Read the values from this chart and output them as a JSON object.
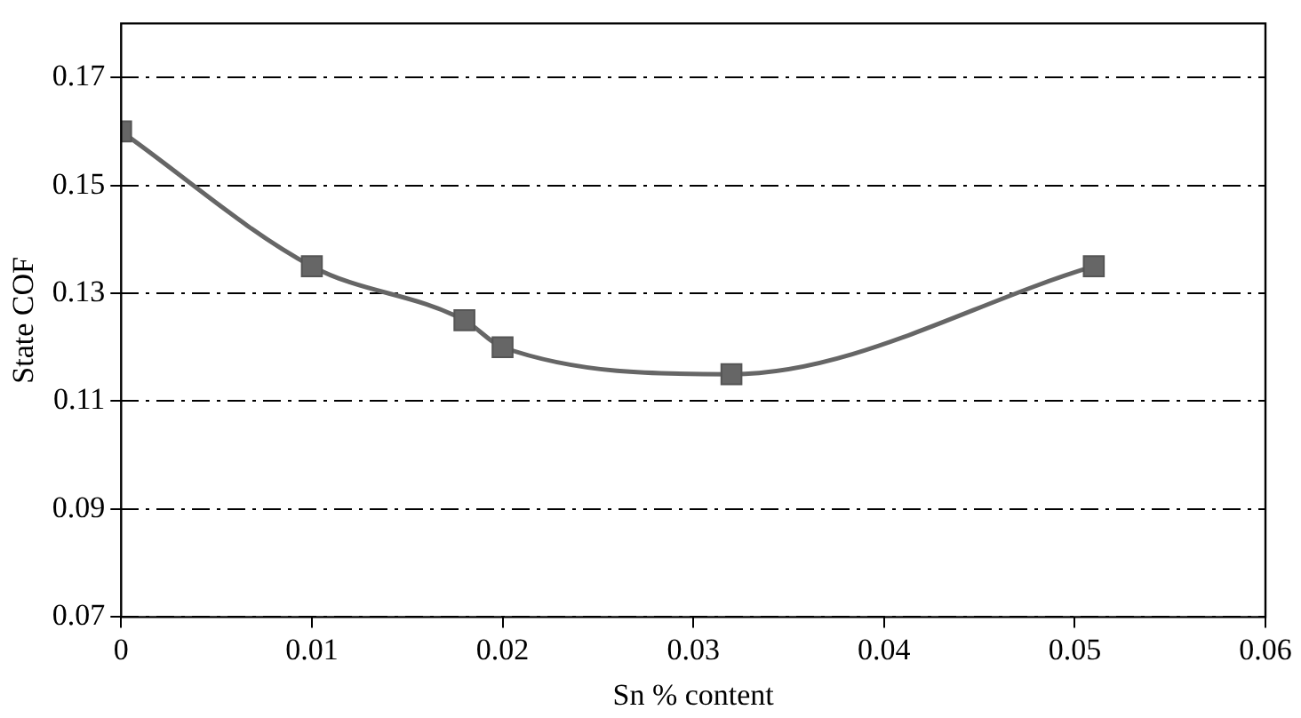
{
  "chart_data": {
    "type": "line",
    "xlabel": "Sn % content",
    "ylabel": "State COF",
    "x": [
      0,
      0.01,
      0.018,
      0.02,
      0.032,
      0.051
    ],
    "series": [
      {
        "color": "#666666",
        "values": [
          0.16,
          0.135,
          0.125,
          0.12,
          0.115,
          0.135
        ]
      }
    ],
    "xlim": [
      0,
      0.06
    ],
    "xticks": [
      0,
      0.01,
      0.02,
      0.03,
      0.04,
      0.05,
      0.06
    ],
    "ylim": [
      0.07,
      0.18
    ],
    "yticks": [
      0.07,
      0.09,
      0.11,
      0.13,
      0.15,
      0.17
    ],
    "grid": "y",
    "legend": false,
    "marker": "square",
    "line_style": "solid"
  }
}
